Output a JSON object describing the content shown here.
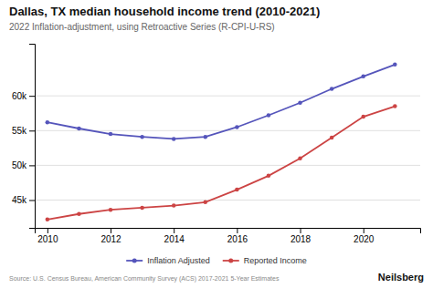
{
  "chart_data": {
    "type": "line",
    "title": "Dallas, TX median household income trend (2010-2021)",
    "subtitle": "2022 Inflation-adjustment, using Retroactive Series (R-CPI-U-RS)",
    "annotations": [
      "Source: U.S. Census Bureau, American Community Survey (ACS) 2017-2021 5-Year Estimates",
      "Neilsberg"
    ],
    "x": [
      2010,
      2011,
      2012,
      2013,
      2014,
      2015,
      2016,
      2017,
      2018,
      2019,
      2020,
      2021
    ],
    "series": [
      {
        "name": "Inflation Adjusted",
        "color": "#5555bb",
        "marker": "circle",
        "values": [
          56200,
          55300,
          54500,
          54100,
          53800,
          54100,
          55500,
          57200,
          59000,
          61000,
          62800,
          64500
        ]
      },
      {
        "name": "Reported Income",
        "color": "#cc4444",
        "marker": "circle",
        "values": [
          42200,
          43000,
          43600,
          43900,
          44200,
          44700,
          46500,
          48500,
          51000,
          54000,
          57000,
          58500
        ]
      }
    ],
    "xlim": [
      2009.6,
      2021.8
    ],
    "xticks": [
      2010,
      2012,
      2014,
      2016,
      2018,
      2020
    ],
    "ylim": [
      41000,
      67500
    ],
    "yticks": [
      {
        "value": 45000,
        "label": "45k"
      },
      {
        "value": 50000,
        "label": "50k"
      },
      {
        "value": 55000,
        "label": "55k"
      },
      {
        "value": 60000,
        "label": "60k"
      }
    ],
    "grid": true,
    "legend": "bottom"
  }
}
